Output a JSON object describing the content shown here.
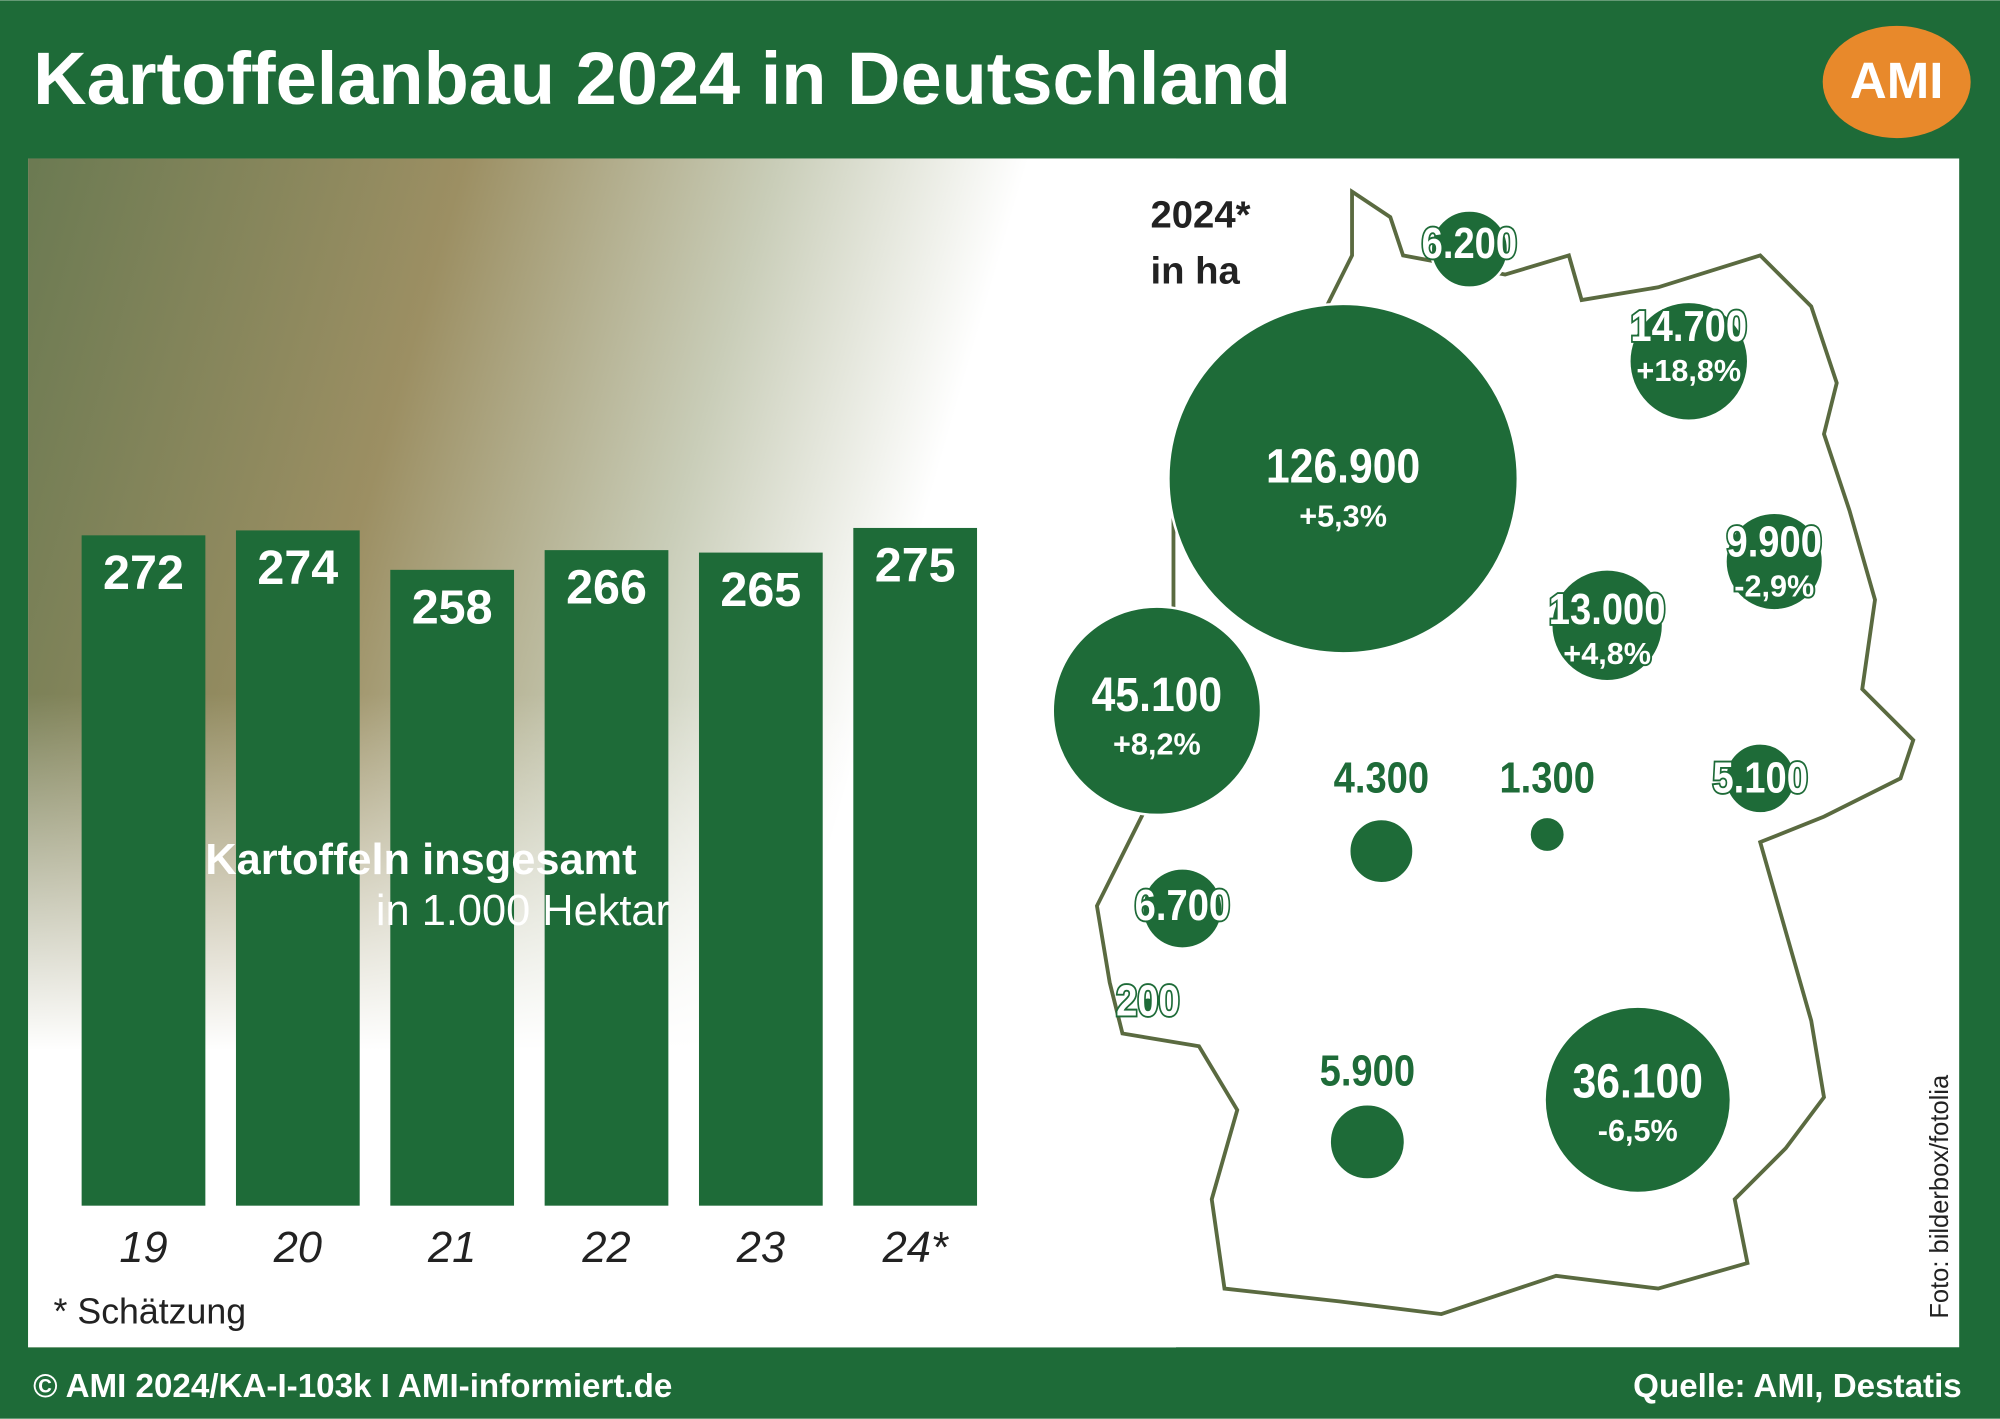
{
  "header": {
    "title": "Kartoffelanbau 2024 in Deutschland",
    "logo": "AMI"
  },
  "chart_data": {
    "type": "bar",
    "title": "Kartoffeln insgesamt",
    "subtitle": "in 1.000 Hektar",
    "categories": [
      "19",
      "20",
      "21",
      "22",
      "23",
      "24*"
    ],
    "values": [
      272,
      274,
      258,
      266,
      265,
      275
    ],
    "color": "#1e6b38",
    "ylim": [
      0,
      280
    ],
    "note": "* Schätzung"
  },
  "map_data": {
    "title": "2024*",
    "unit": "in ha",
    "values": [
      126900,
      45100,
      36100,
      14700,
      13000,
      9900,
      6200,
      6700,
      5900,
      5100,
      4300,
      1300,
      200
    ],
    "value_labels": [
      "126.900",
      "45.100",
      "36.100",
      "14.700",
      "13.000",
      "9.900",
      "6.200",
      "6.700",
      "5.900",
      "5.100",
      "4.300",
      "1.300",
      "200"
    ],
    "changes": [
      "+5,3%",
      "+8,2%",
      "-6,5%",
      "+18,8%",
      "+4,8%",
      "-2,9%",
      null,
      null,
      null,
      null,
      null,
      null,
      null
    ],
    "color": "#1e6b38"
  },
  "footer": {
    "left": "© AMI 2024/KA-I-103k I AMI-informiert.de",
    "right": "Quelle: AMI, Destatis",
    "credit": "Foto: bilderbox/fotolia"
  }
}
